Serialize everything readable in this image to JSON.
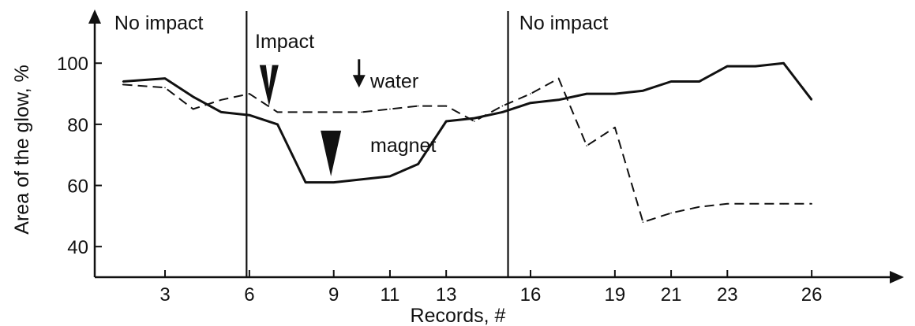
{
  "chart_data": {
    "type": "line",
    "title": "",
    "xlabel": "Records, #",
    "ylabel": "Area of the glow, %",
    "x_ticks": [
      "3",
      "6",
      "9",
      "11",
      "13",
      "16",
      "19",
      "21",
      "23",
      "26"
    ],
    "y_ticks": [
      "40",
      "60",
      "80",
      "100"
    ],
    "ylim": [
      30,
      115
    ],
    "xlim": [
      0.5,
      29
    ],
    "grid": false,
    "legend": "none",
    "series": [
      {
        "style": "solid",
        "color": "#111111",
        "x": [
          1.5,
          3,
          4,
          5,
          6,
          7,
          8,
          9,
          10,
          11,
          12,
          13,
          14,
          15,
          16,
          17,
          18,
          19,
          20,
          21,
          22,
          23,
          24,
          25,
          26
        ],
        "y": [
          94,
          95,
          89,
          84,
          83,
          80,
          61,
          61,
          62,
          63,
          67,
          81,
          82,
          84,
          87,
          88,
          90,
          90,
          91,
          94,
          94,
          99,
          99,
          100,
          88
        ]
      },
      {
        "style": "dashed",
        "color": "#111111",
        "x": [
          1.5,
          3,
          4,
          5,
          6,
          7,
          8,
          9,
          10,
          11,
          12,
          13,
          14,
          15,
          16,
          17,
          18,
          19,
          20,
          21,
          22,
          23,
          24,
          25,
          26
        ],
        "y": [
          93,
          92,
          85,
          88,
          90,
          84,
          84,
          84,
          84,
          85,
          86,
          86,
          81,
          86,
          90,
          95,
          73,
          79,
          48,
          51,
          53,
          54,
          54,
          54,
          54
        ]
      }
    ],
    "vertical_lines": [
      5.9,
      15.2
    ],
    "annotations": [
      {
        "text": "No impact",
        "x": 1.2,
        "y": 111
      },
      {
        "text": "Impact",
        "x": 6.2,
        "y": 105
      },
      {
        "text": "No impact",
        "x": 15.6,
        "y": 111
      },
      {
        "text": "water",
        "x": 10.3,
        "y": 92
      },
      {
        "text": "magnet",
        "x": 10.3,
        "y": 71
      }
    ],
    "markers": [
      {
        "kind": "hollow-triangle",
        "x": 6.7,
        "y": 86
      },
      {
        "kind": "small-arrow",
        "x": 9.9,
        "y": 92
      },
      {
        "kind": "filled-triangle",
        "x": 8.9,
        "y": 63
      }
    ]
  }
}
